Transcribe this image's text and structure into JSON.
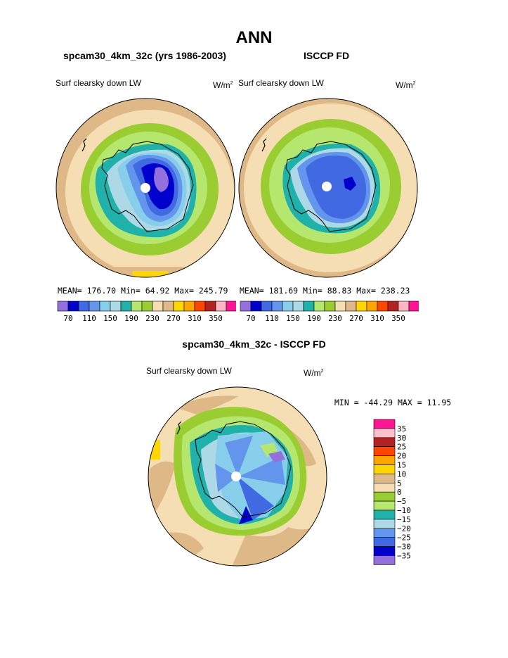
{
  "title": "ANN",
  "panel_left": {
    "case": "spcam30_4km_32c (yrs 1986-2003)",
    "variable": "Surf clearsky down LW",
    "units_base": "W/m",
    "units_exp": "2",
    "stats": {
      "mean_label": "MEAN=",
      "mean": "176.70",
      "min_label": "Min=",
      "min": "64.92",
      "max_label": "Max=",
      "max": "245.79"
    }
  },
  "panel_right": {
    "case": "ISCCP FD",
    "variable": "Surf clearsky down LW",
    "units_base": "W/m",
    "units_exp": "2",
    "stats": {
      "mean_label": "MEAN=",
      "mean": "181.69",
      "min_label": "Min=",
      "min": "88.83",
      "max_label": "Max=",
      "max": "238.23"
    }
  },
  "panel_diff": {
    "case": "spcam30_4km_32c - ISCCP FD",
    "variable": "Surf clearsky down LW",
    "units_base": "W/m",
    "units_exp": "2",
    "minmax": "MIN = -44.29 MAX =  11.95"
  },
  "colorbar_top": {
    "colors": [
      "#9370db",
      "#0000cd",
      "#4169e1",
      "#6495ed",
      "#87ceeb",
      "#add8e6",
      "#20b2aa",
      "#b5e66e",
      "#9acd32",
      "#f5deb3",
      "#deb887",
      "#ffd700",
      "#ffa500",
      "#ff4500",
      "#b22222",
      "#ffb6c1",
      "#ff1493"
    ],
    "labels": [
      "70",
      "110",
      "150",
      "190",
      "230",
      "270",
      "310",
      "350"
    ]
  },
  "colorbar_diff": {
    "colors": [
      "#ff1493",
      "#ffc0cb",
      "#b22222",
      "#ff4500",
      "#ffa500",
      "#ffd700",
      "#deb887",
      "#f5deb3",
      "#9acd32",
      "#b5e66e",
      "#20b2aa",
      "#add8e6",
      "#6495ed",
      "#4169e1",
      "#0000cd",
      "#9370db"
    ],
    "labels": [
      "35",
      "30",
      "25",
      "20",
      "15",
      "10",
      "5",
      "0",
      "−5",
      "−10",
      "−15",
      "−20",
      "−25",
      "−30",
      "−35"
    ]
  }
}
